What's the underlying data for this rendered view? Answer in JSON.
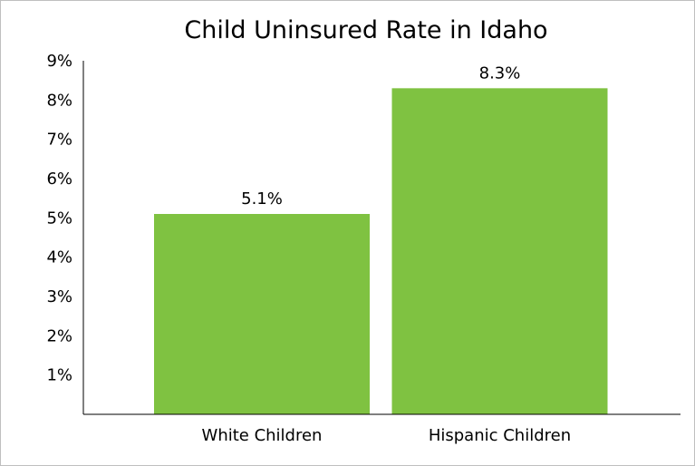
{
  "chart_data": {
    "type": "bar",
    "title": "Child Uninsured Rate in Idaho",
    "categories": [
      "White Children",
      "Hispanic Children"
    ],
    "values": [
      5.1,
      8.3
    ],
    "data_labels": [
      "5.1%",
      "8.3%"
    ],
    "y_ticks": [
      {
        "value": 1,
        "label": "1%"
      },
      {
        "value": 2,
        "label": "2%"
      },
      {
        "value": 3,
        "label": "3%"
      },
      {
        "value": 4,
        "label": "4%"
      },
      {
        "value": 5,
        "label": "5%"
      },
      {
        "value": 6,
        "label": "6%"
      },
      {
        "value": 7,
        "label": "7%"
      },
      {
        "value": 8,
        "label": "8%"
      },
      {
        "value": 9,
        "label": "9%"
      }
    ],
    "ylim": [
      0,
      9
    ],
    "grid": false,
    "legend": "none",
    "bar_color": "#7fc241"
  }
}
